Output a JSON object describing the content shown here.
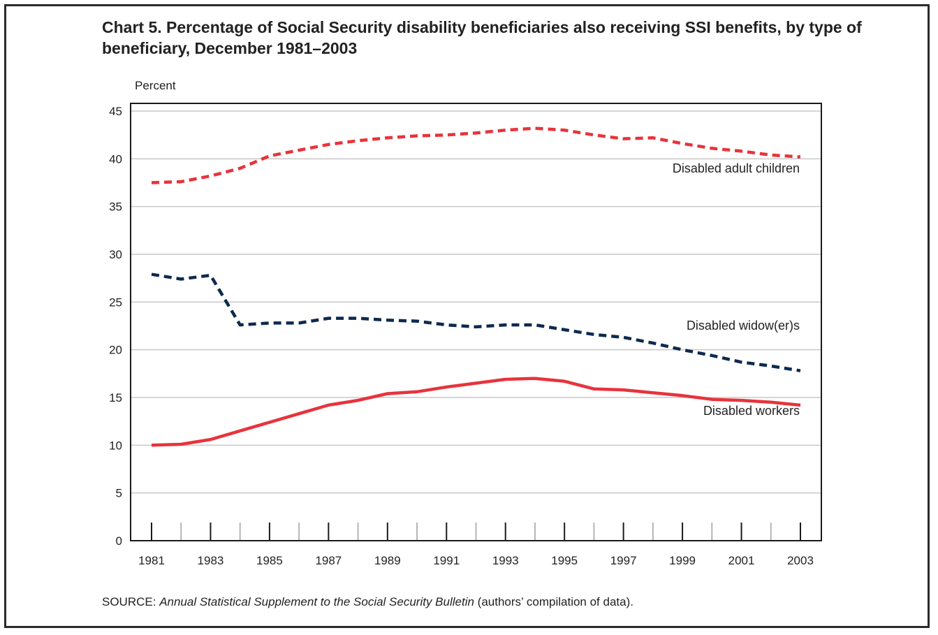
{
  "chart_data": {
    "type": "line",
    "title": "Chart 5.  Percentage of Social Security disability beneficiaries also receiving SSI benefits, by type of beneficiary, December 1981–2003",
    "ylabel": "Percent",
    "xlabel": "",
    "ylim": [
      0,
      45
    ],
    "yticks": [
      "0",
      "5",
      "10",
      "15",
      "20",
      "25",
      "30",
      "35",
      "40",
      "45"
    ],
    "xtick_labels": [
      "1981",
      "1983",
      "1985",
      "1987",
      "1989",
      "1991",
      "1993",
      "1995",
      "1997",
      "1999",
      "2001",
      "2003"
    ],
    "x": [
      1981,
      1982,
      1983,
      1984,
      1985,
      1986,
      1987,
      1988,
      1989,
      1990,
      1991,
      1992,
      1993,
      1994,
      1995,
      1996,
      1997,
      1998,
      1999,
      2000,
      2001,
      2002,
      2003
    ],
    "grid": true,
    "series": [
      {
        "name": "Disabled adult children",
        "color": "#e8333b",
        "style": "dashed",
        "values": [
          37.5,
          37.6,
          38.2,
          39.0,
          40.3,
          40.9,
          41.5,
          41.9,
          42.2,
          42.4,
          42.5,
          42.7,
          43.0,
          43.2,
          43.0,
          42.5,
          42.1,
          42.2,
          41.6,
          41.1,
          40.8,
          40.4,
          40.2
        ]
      },
      {
        "name": "Disabled widow(er)s",
        "color": "#0d2a4e",
        "style": "dashed",
        "values": [
          27.9,
          27.4,
          27.8,
          22.6,
          22.8,
          22.8,
          23.3,
          23.3,
          23.1,
          23.0,
          22.6,
          22.4,
          22.6,
          22.6,
          22.1,
          21.6,
          21.3,
          20.7,
          20.0,
          19.4,
          18.7,
          18.3,
          17.8
        ]
      },
      {
        "name": "Disabled workers",
        "color": "#e8333b",
        "style": "solid",
        "values": [
          10.0,
          10.1,
          10.6,
          11.5,
          12.4,
          13.3,
          14.2,
          14.7,
          15.4,
          15.6,
          16.1,
          16.5,
          16.9,
          17.0,
          16.7,
          15.9,
          15.8,
          15.5,
          15.2,
          14.8,
          14.7,
          14.5,
          14.2
        ]
      }
    ],
    "source_prefix": "SOURCE:  ",
    "source_italic": "Annual Statistical Supplement to the Social Security Bulletin",
    "source_suffix": " (authors’ compilation of data)."
  }
}
